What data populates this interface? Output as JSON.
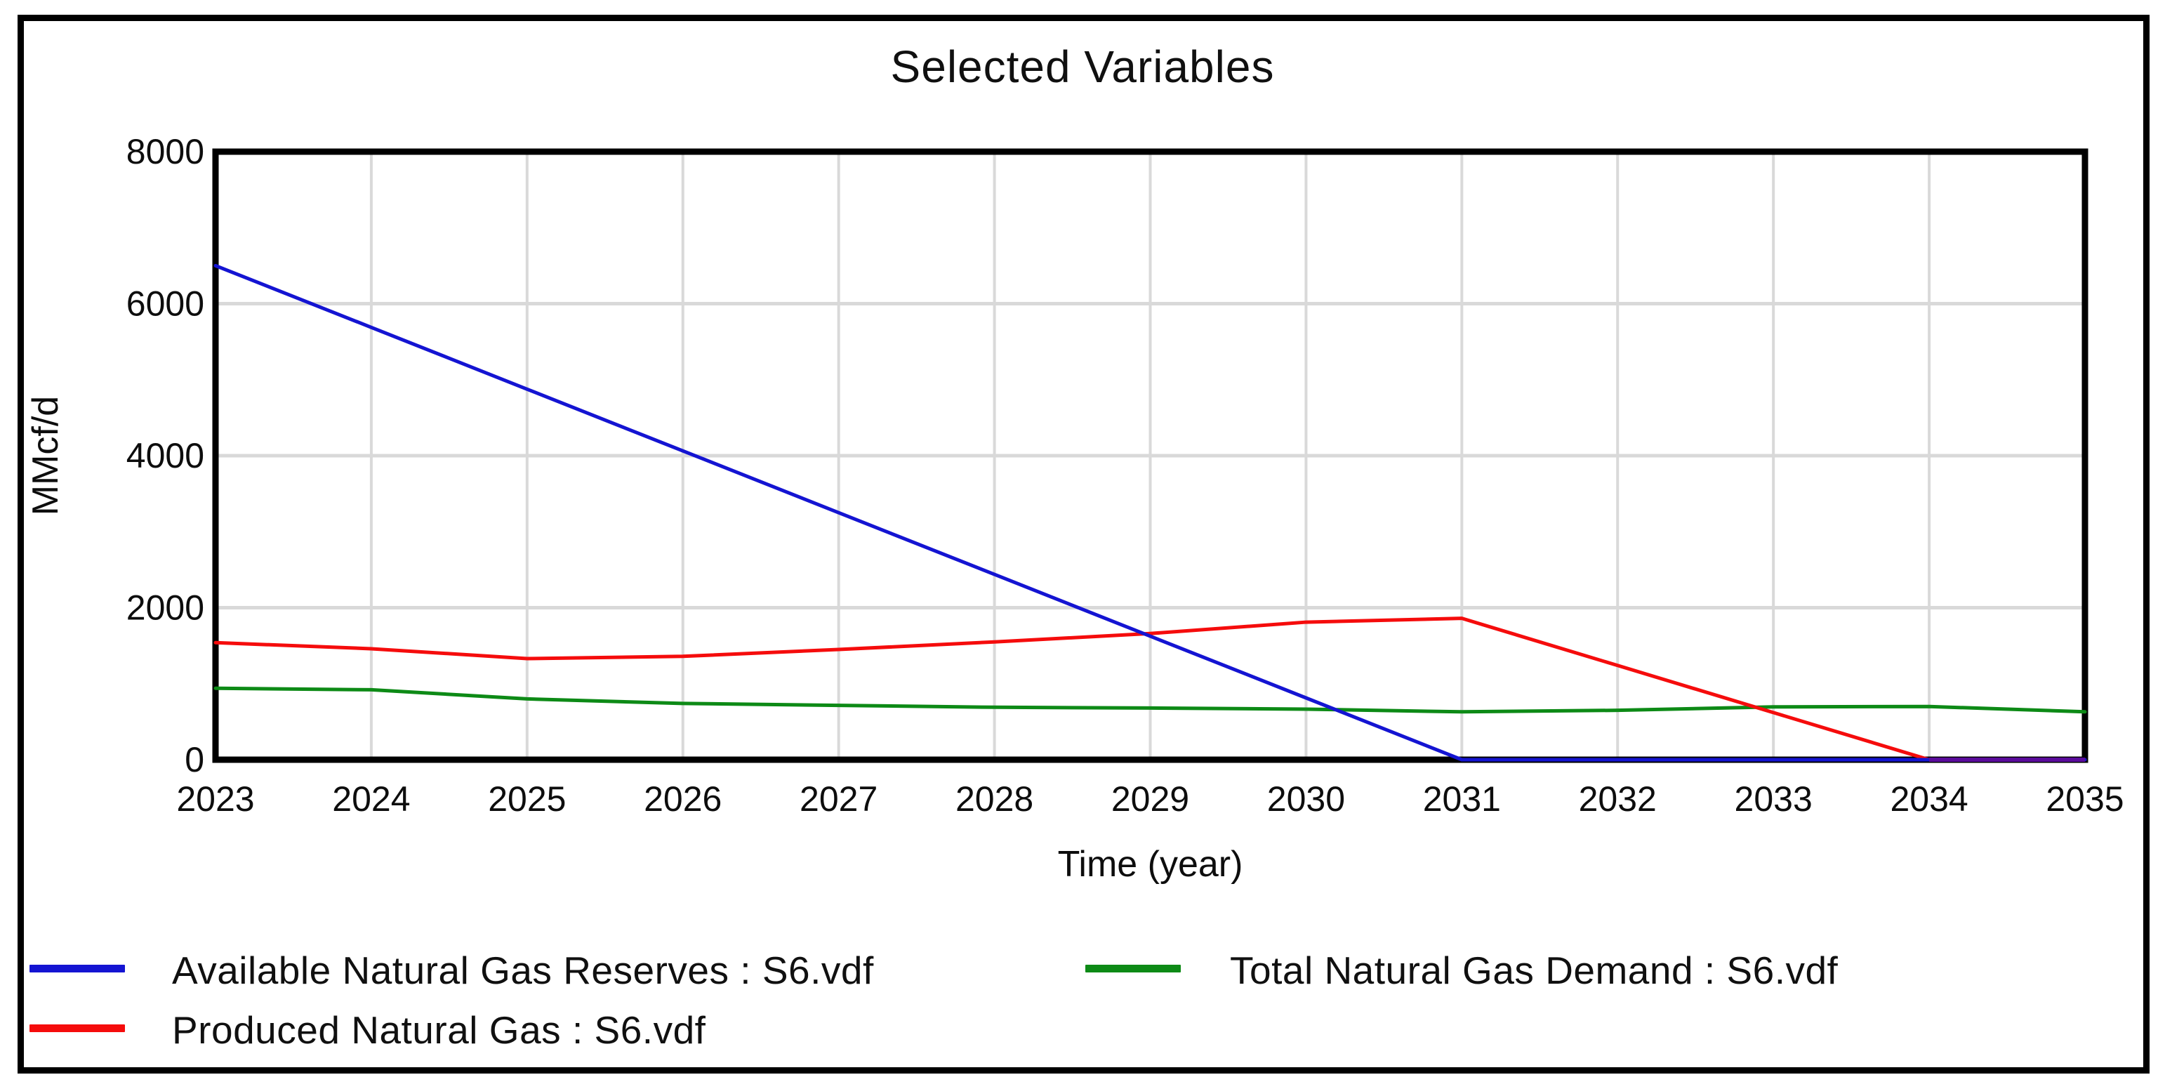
{
  "chart_data": {
    "type": "line",
    "title": "Selected Variables",
    "xlabel": "Time (year)",
    "ylabel": "MMcf/d",
    "x": [
      2023,
      2024,
      2025,
      2026,
      2027,
      2028,
      2029,
      2030,
      2031,
      2032,
      2033,
      2034,
      2035
    ],
    "xlim": [
      2023,
      2035
    ],
    "ylim": [
      0,
      8000
    ],
    "yticks": [
      0,
      2000,
      4000,
      6000,
      8000
    ],
    "grid": true,
    "grid_color": "#d9d9d9",
    "legend_position": "bottom-left-two-columns",
    "series": [
      {
        "name": "Available Natural Gas Reserves : S6.vdf",
        "color": "#1414d2",
        "values": [
          6500,
          5688,
          4875,
          4063,
          3250,
          2438,
          1625,
          813,
          0,
          0,
          0,
          0,
          0
        ]
      },
      {
        "name": "Produced Natural Gas : S6.vdf",
        "color": "#f50c0c",
        "values": [
          1540,
          1460,
          1330,
          1360,
          1450,
          1550,
          1660,
          1810,
          1860,
          1240,
          620,
          0,
          0
        ]
      },
      {
        "name": "Total Natural Gas Demand : S6.vdf",
        "color": "#0d8a16",
        "values": [
          940,
          920,
          800,
          740,
          715,
          690,
          680,
          665,
          630,
          650,
          695,
          700,
          630
        ]
      }
    ],
    "baseline_overlap_segment": {
      "x": [
        2034,
        2035
      ],
      "y": 0,
      "color": "#5a0b9b"
    }
  },
  "legend": {
    "items": [
      {
        "label": "Available Natural Gas Reserves : S6.vdf",
        "series_index": 0
      },
      {
        "label": "Produced Natural Gas : S6.vdf",
        "series_index": 1
      },
      {
        "label": "Total Natural Gas Demand : S6.vdf",
        "series_index": 2
      }
    ]
  }
}
